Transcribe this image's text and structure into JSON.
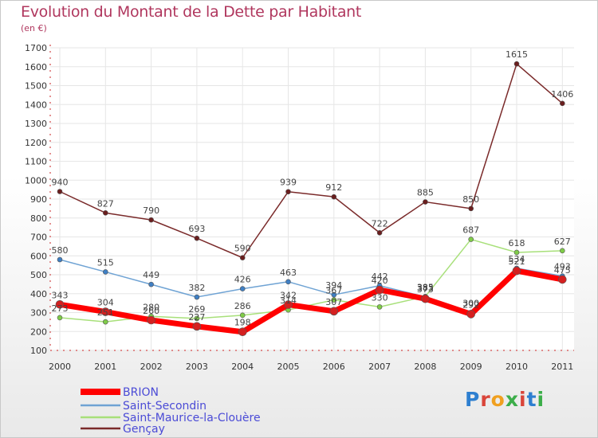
{
  "header": {
    "title": "Evolution du Montant de la Dette par Habitant",
    "subtitle": "(en €)"
  },
  "logo": {
    "text": "Proxiti",
    "letter_colors": [
      "#2e7fd0",
      "#d9453a",
      "#f0a020",
      "#3cae4a",
      "#d9453a",
      "#2e7fd0",
      "#3cae4a"
    ]
  },
  "chart_data": {
    "type": "line",
    "title": "Evolution du Montant de la Dette par Habitant",
    "ylabel": "(en €)",
    "x": [
      "2000",
      "2001",
      "2002",
      "2003",
      "2004",
      "2005",
      "2006",
      "2007",
      "2008",
      "2009",
      "2010",
      "2011"
    ],
    "ylim": [
      100,
      1700
    ],
    "yticks": [
      "100",
      "200",
      "300",
      "400",
      "500",
      "600",
      "700",
      "800",
      "900",
      "1000",
      "1100",
      "1200",
      "1300",
      "1400",
      "1500",
      "1600",
      "1700"
    ],
    "grid": true,
    "legend_position": "bottom-left",
    "series": [
      {
        "name": "BRION",
        "values": [
          343,
          304,
          260,
          227,
          198,
          342,
          307,
          420,
          373,
          292,
          521,
          475
        ],
        "labels": [
          "343",
          "304",
          "260",
          "227",
          "198",
          "342",
          "307",
          "420",
          "373",
          "292",
          "521",
          "475"
        ],
        "color": "#ff0000",
        "marker": "#d42020",
        "width": 7,
        "radius": 5
      },
      {
        "name": "Saint-Secondin",
        "values": [
          580,
          515,
          449,
          382,
          426,
          463,
          394,
          442,
          383,
          300,
          534,
          493
        ],
        "labels": [
          "580",
          "515",
          "449",
          "382",
          "426",
          "463",
          "394",
          "442",
          "383",
          "300",
          "534",
          "493"
        ],
        "color": "#6fa3d4",
        "marker": "#3f7fc4",
        "width": 1.5,
        "radius": 3
      },
      {
        "name": "Saint-Maurice-la-Clouère",
        "values": [
          273,
          251,
          280,
          269,
          286,
          314,
          367,
          330,
          385,
          687,
          618,
          627
        ],
        "labels": [
          "273",
          "251",
          "280",
          "269",
          "286",
          "314",
          "367",
          "330",
          "385",
          "687",
          "618",
          "627"
        ],
        "color": "#a8e07a",
        "marker": "#7fcc48",
        "width": 1.5,
        "radius": 3
      },
      {
        "name": "Gençay",
        "values": [
          940,
          827,
          790,
          693,
          590,
          939,
          912,
          722,
          885,
          850,
          1615,
          1406
        ],
        "labels": [
          "940",
          "827",
          "790",
          "693",
          "590",
          "939",
          "912",
          "722",
          "885",
          "850",
          "1615",
          "1406"
        ],
        "color": "#7a2a2a",
        "marker": "#6a1e1e",
        "width": 1.5,
        "radius": 3
      }
    ]
  }
}
